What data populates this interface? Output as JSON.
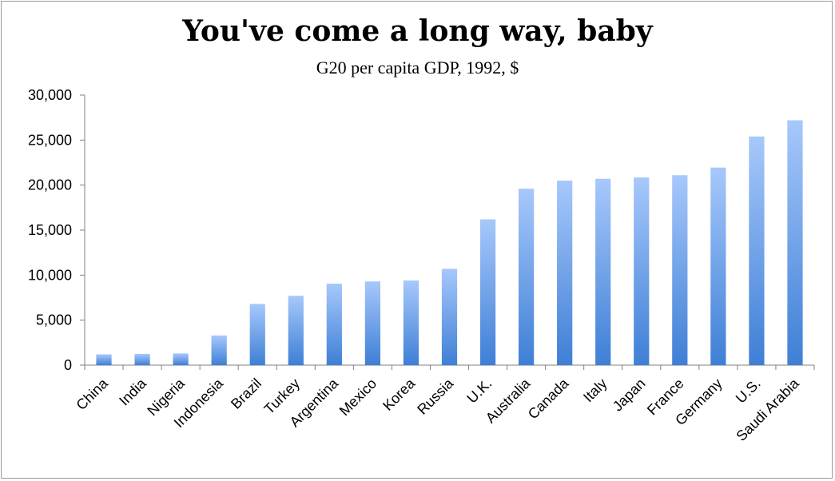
{
  "chart_data": {
    "type": "bar",
    "title": "You've come a long way, baby",
    "subtitle": "G20 per capita GDP, 1992, $",
    "xlabel": "",
    "ylabel": "",
    "categories": [
      "China",
      "India",
      "Nigeria",
      "Indonesia",
      "Brazil",
      "Turkey",
      "Argentina",
      "Mexico",
      "Korea",
      "Russia",
      "U.K.",
      "Australia",
      "Canada",
      "Italy",
      "Japan",
      "France",
      "Germany",
      "U.S.",
      "Saudi Arabia"
    ],
    "values": [
      1200,
      1250,
      1300,
      3300,
      6800,
      7700,
      9050,
      9300,
      9400,
      10700,
      16200,
      19600,
      20500,
      20700,
      20850,
      21100,
      21950,
      25400,
      27200
    ],
    "ylim": [
      0,
      30000
    ],
    "yticks": [
      0,
      5000,
      10000,
      15000,
      20000,
      25000,
      30000
    ],
    "ytick_labels": [
      "0",
      "5,000",
      "10,000",
      "15,000",
      "20,000",
      "25,000",
      "30,000"
    ],
    "grid": false,
    "legend": "none",
    "bar_color_top": "#a7c8fb",
    "bar_color_bottom": "#3e7fd6"
  }
}
